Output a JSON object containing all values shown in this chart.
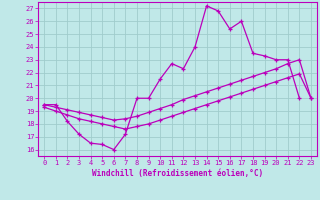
{
  "xlabel": "Windchill (Refroidissement éolien,°C)",
  "background_color": "#c0e8e8",
  "grid_color": "#a0cccc",
  "line_color": "#bb00bb",
  "xlim": [
    -0.5,
    23.5
  ],
  "ylim": [
    15.5,
    27.5
  ],
  "yticks": [
    16,
    17,
    18,
    19,
    20,
    21,
    22,
    23,
    24,
    25,
    26,
    27
  ],
  "xticks": [
    0,
    1,
    2,
    3,
    4,
    5,
    6,
    7,
    8,
    9,
    10,
    11,
    12,
    13,
    14,
    15,
    16,
    17,
    18,
    19,
    20,
    21,
    22,
    23
  ],
  "series": [
    {
      "x": [
        0,
        1,
        2,
        3,
        4,
        5,
        6,
        7,
        8,
        9,
        10,
        11,
        12,
        13,
        14,
        15,
        16,
        17,
        18,
        19,
        20,
        21,
        22
      ],
      "y": [
        19.5,
        19.5,
        18.2,
        17.2,
        16.5,
        16.4,
        16.0,
        17.2,
        20.0,
        20.0,
        21.5,
        22.7,
        22.3,
        24.0,
        27.2,
        26.8,
        25.4,
        26.0,
        23.5,
        23.3,
        23.0,
        23.0,
        20.0
      ]
    },
    {
      "x": [
        0,
        1,
        2,
        3,
        4,
        5,
        6,
        7,
        8,
        9,
        10,
        11,
        12,
        13,
        14,
        15,
        16,
        17,
        18,
        19,
        20,
        21,
        22,
        23
      ],
      "y": [
        19.5,
        19.3,
        19.1,
        18.9,
        18.7,
        18.5,
        18.3,
        18.4,
        18.6,
        18.9,
        19.2,
        19.5,
        19.9,
        20.2,
        20.5,
        20.8,
        21.1,
        21.4,
        21.7,
        22.0,
        22.3,
        22.7,
        23.0,
        20.0
      ]
    },
    {
      "x": [
        0,
        1,
        2,
        3,
        4,
        5,
        6,
        7,
        8,
        9,
        10,
        11,
        12,
        13,
        14,
        15,
        16,
        17,
        18,
        19,
        20,
        21,
        22,
        23
      ],
      "y": [
        19.3,
        19.0,
        18.7,
        18.4,
        18.2,
        18.0,
        17.8,
        17.6,
        17.8,
        18.0,
        18.3,
        18.6,
        18.9,
        19.2,
        19.5,
        19.8,
        20.1,
        20.4,
        20.7,
        21.0,
        21.3,
        21.6,
        21.9,
        20.0
      ]
    }
  ]
}
